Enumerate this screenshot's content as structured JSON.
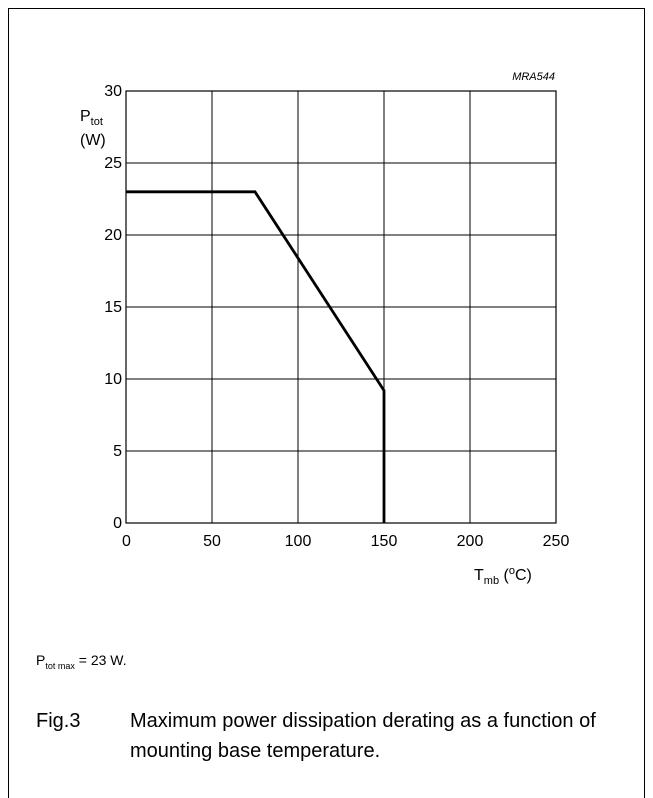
{
  "figure": {
    "code": "MRA544",
    "note_main": "P",
    "note_sub": "tot max",
    "note_rest": " = 23 W.",
    "caption_num": "Fig.3",
    "caption_text": "Maximum power dissipation derating as a function of mounting base temperature."
  },
  "chart_data": {
    "type": "line",
    "title": "",
    "xlabel": {
      "main": "T",
      "sub": "mb",
      "unit_open": " (",
      "unit_sup": "o",
      "unit_rest": "C)"
    },
    "ylabel": {
      "main": "P",
      "sub": "tot",
      "unit": "(W)"
    },
    "xlim": [
      0,
      250
    ],
    "ylim": [
      0,
      30
    ],
    "xticks": [
      0,
      50,
      100,
      150,
      200,
      250
    ],
    "yticks": [
      0,
      5,
      10,
      15,
      20,
      25,
      30
    ],
    "grid": true,
    "series": [
      {
        "x": [
          0,
          75,
          150,
          150
        ],
        "y": [
          23,
          23,
          9.2,
          0
        ]
      }
    ]
  }
}
